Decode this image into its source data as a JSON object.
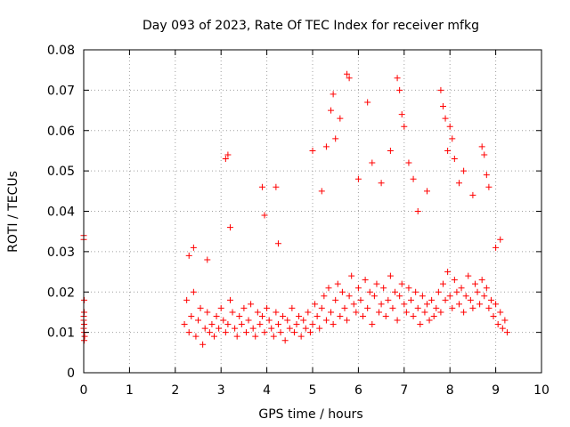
{
  "chart_data": {
    "type": "scatter",
    "title": "Day 093 of 2023, Rate Of TEC Index for receiver mfkg",
    "xlabel": "GPS time / hours",
    "ylabel": "ROTI / TECUs",
    "xlim": [
      0,
      10
    ],
    "ylim": [
      0,
      0.08
    ],
    "grid": true,
    "marker": "+",
    "color": "#ff0000",
    "x_ticks": [
      "0",
      "1",
      "2",
      "3",
      "4",
      "5",
      "6",
      "7",
      "8",
      "9",
      "10"
    ],
    "y_ticks": [
      "0",
      "0.01",
      "0.02",
      "0.03",
      "0.04",
      "0.05",
      "0.06",
      "0.07",
      "0.08"
    ],
    "series": [
      {
        "name": "ROTI",
        "x": [
          0.0,
          0.0,
          0.01,
          0.01,
          0.0,
          0.01,
          0.0,
          0.01,
          0.02,
          0.01,
          0.0,
          0.01,
          2.2,
          2.25,
          2.3,
          2.35,
          2.4,
          2.45,
          2.5,
          2.55,
          2.6,
          2.65,
          2.7,
          2.75,
          2.8,
          2.85,
          2.9,
          2.95,
          3.0,
          3.05,
          3.1,
          3.15,
          3.2,
          3.25,
          3.3,
          3.35,
          3.4,
          3.45,
          3.5,
          3.55,
          3.6,
          3.65,
          3.7,
          3.75,
          3.8,
          3.85,
          3.9,
          3.95,
          4.0,
          4.05,
          4.1,
          4.15,
          4.2,
          4.25,
          4.3,
          4.35,
          4.4,
          4.45,
          4.5,
          4.55,
          4.6,
          4.65,
          4.7,
          4.75,
          4.8,
          4.85,
          4.9,
          4.95,
          5.0,
          5.05,
          5.1,
          5.15,
          5.2,
          5.25,
          5.3,
          5.35,
          5.4,
          5.45,
          5.5,
          5.55,
          5.6,
          5.65,
          5.7,
          5.75,
          5.8,
          5.85,
          5.9,
          5.95,
          6.0,
          6.05,
          6.1,
          6.15,
          6.2,
          6.25,
          6.3,
          6.35,
          6.4,
          6.45,
          6.5,
          6.55,
          6.6,
          6.65,
          6.7,
          6.75,
          6.8,
          6.85,
          6.9,
          6.95,
          7.0,
          7.05,
          7.1,
          7.15,
          7.2,
          7.25,
          7.3,
          7.35,
          7.4,
          7.45,
          7.5,
          7.55,
          7.6,
          7.65,
          7.7,
          7.75,
          7.8,
          7.85,
          7.9,
          7.95,
          8.0,
          8.05,
          8.1,
          8.15,
          8.2,
          8.25,
          8.3,
          8.35,
          8.4,
          8.45,
          8.5,
          8.55,
          8.6,
          8.65,
          8.7,
          8.75,
          8.8,
          8.85,
          8.9,
          8.95,
          9.0,
          9.05,
          9.1,
          9.15,
          9.2,
          9.25,
          2.3,
          2.4,
          2.7,
          3.1,
          3.15,
          3.2,
          3.9,
          3.95,
          4.2,
          4.25,
          5.0,
          5.2,
          5.3,
          5.4,
          5.45,
          5.5,
          5.6,
          5.75,
          5.8,
          6.0,
          6.2,
          6.3,
          6.5,
          6.7,
          6.85,
          6.9,
          6.95,
          7.0,
          7.1,
          7.2,
          7.3,
          7.5,
          7.8,
          7.85,
          7.9,
          7.95,
          8.0,
          8.05,
          8.1,
          8.2,
          8.3,
          8.5,
          8.7,
          8.75,
          8.8,
          8.85,
          9.0,
          9.1
        ],
        "y": [
          0.034,
          0.033,
          0.018,
          0.015,
          0.013,
          0.012,
          0.011,
          0.01,
          0.009,
          0.008,
          0.014,
          0.012,
          0.012,
          0.018,
          0.01,
          0.014,
          0.02,
          0.009,
          0.013,
          0.016,
          0.007,
          0.011,
          0.015,
          0.01,
          0.012,
          0.009,
          0.014,
          0.011,
          0.016,
          0.013,
          0.01,
          0.012,
          0.018,
          0.015,
          0.011,
          0.009,
          0.014,
          0.012,
          0.016,
          0.01,
          0.013,
          0.017,
          0.011,
          0.009,
          0.015,
          0.012,
          0.014,
          0.01,
          0.016,
          0.013,
          0.011,
          0.009,
          0.015,
          0.012,
          0.01,
          0.014,
          0.008,
          0.013,
          0.011,
          0.016,
          0.01,
          0.012,
          0.014,
          0.009,
          0.013,
          0.011,
          0.015,
          0.01,
          0.012,
          0.017,
          0.014,
          0.011,
          0.016,
          0.019,
          0.013,
          0.021,
          0.015,
          0.012,
          0.018,
          0.022,
          0.014,
          0.02,
          0.016,
          0.013,
          0.019,
          0.024,
          0.017,
          0.015,
          0.021,
          0.018,
          0.014,
          0.023,
          0.016,
          0.02,
          0.012,
          0.019,
          0.022,
          0.015,
          0.017,
          0.021,
          0.014,
          0.018,
          0.024,
          0.016,
          0.02,
          0.013,
          0.019,
          0.022,
          0.017,
          0.015,
          0.021,
          0.018,
          0.014,
          0.02,
          0.016,
          0.012,
          0.019,
          0.015,
          0.017,
          0.013,
          0.018,
          0.014,
          0.016,
          0.02,
          0.015,
          0.022,
          0.018,
          0.025,
          0.019,
          0.016,
          0.023,
          0.02,
          0.017,
          0.021,
          0.015,
          0.019,
          0.024,
          0.018,
          0.016,
          0.022,
          0.02,
          0.017,
          0.023,
          0.019,
          0.021,
          0.016,
          0.018,
          0.014,
          0.017,
          0.012,
          0.015,
          0.011,
          0.013,
          0.01,
          0.029,
          0.031,
          0.028,
          0.053,
          0.054,
          0.036,
          0.046,
          0.039,
          0.046,
          0.032,
          0.055,
          0.045,
          0.056,
          0.065,
          0.069,
          0.058,
          0.063,
          0.074,
          0.073,
          0.048,
          0.067,
          0.052,
          0.047,
          0.055,
          0.073,
          0.07,
          0.064,
          0.061,
          0.052,
          0.048,
          0.04,
          0.045,
          0.07,
          0.066,
          0.063,
          0.055,
          0.061,
          0.058,
          0.053,
          0.047,
          0.05,
          0.044,
          0.056,
          0.054,
          0.049,
          0.046,
          0.031,
          0.033
        ]
      }
    ]
  }
}
